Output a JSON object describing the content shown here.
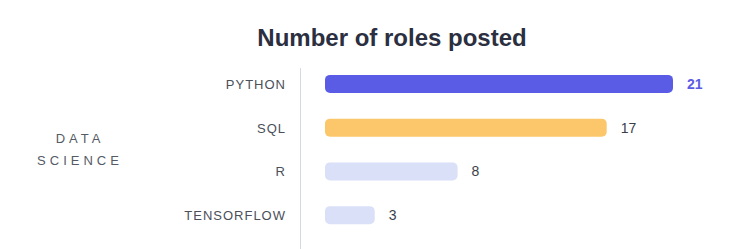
{
  "chart_data": {
    "type": "bar",
    "title": "Number of roles posted",
    "y_label": "DATA SCIENCE",
    "orientation": "horizontal",
    "categories": [
      "PYTHON",
      "SQL",
      "R",
      "TENSORFLOW"
    ],
    "values": [
      21,
      17,
      8,
      3
    ],
    "colors": [
      "#5a5ce6",
      "#fbc76a",
      "#d9e0f8",
      "#d9e0f8"
    ],
    "xlim": [
      0,
      21
    ],
    "data_labels": true,
    "tick_labels": "y",
    "grid": false
  }
}
